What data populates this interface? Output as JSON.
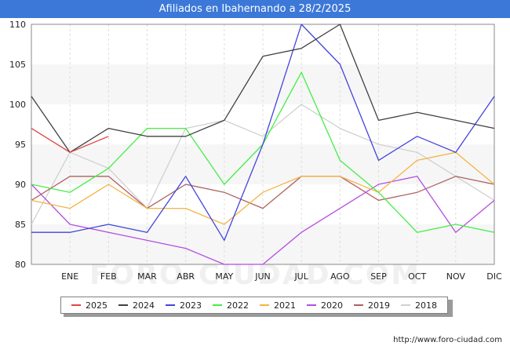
{
  "header": {
    "title": "Afiliados en Ibahernando a 28/2/2025"
  },
  "watermark": "FORO-CIUDAD.COM",
  "footer": {
    "url": "http://www.foro-ciudad.com"
  },
  "chart_data": {
    "type": "line",
    "title": "Afiliados en Ibahernando a 28/2/2025",
    "xlabel": "",
    "ylabel": "",
    "ylim": [
      80,
      110
    ],
    "yticks": [
      80,
      85,
      90,
      95,
      100,
      105,
      110
    ],
    "grid": true,
    "legend_position": "bottom",
    "categories": [
      "",
      "ENE",
      "FEB",
      "MAR",
      "ABR",
      "MAY",
      "JUN",
      "JUL",
      "AGO",
      "SEP",
      "OCT",
      "NOV",
      "DIC"
    ],
    "series": [
      {
        "name": "2018",
        "color": "#d0d0d0",
        "values": [
          85,
          94,
          92,
          87,
          97,
          98,
          96,
          100,
          97,
          95,
          94,
          91,
          88
        ]
      },
      {
        "name": "2019",
        "color": "#b06060",
        "values": [
          88,
          91,
          91,
          87,
          90,
          89,
          87,
          91,
          91,
          88,
          89,
          91,
          90
        ]
      },
      {
        "name": "2020",
        "color": "#b44ee0",
        "values": [
          90,
          85,
          84,
          83,
          82,
          80,
          80,
          84,
          87,
          90,
          91,
          84,
          88
        ]
      },
      {
        "name": "2021",
        "color": "#f5b342",
        "values": [
          88,
          87,
          90,
          87,
          87,
          85,
          89,
          91,
          91,
          89,
          93,
          94,
          90
        ]
      },
      {
        "name": "2022",
        "color": "#44ee44",
        "values": [
          90,
          89,
          92,
          97,
          97,
          90,
          95,
          104,
          93,
          89,
          84,
          85,
          84
        ]
      },
      {
        "name": "2023",
        "color": "#4444dd",
        "values": [
          84,
          84,
          85,
          84,
          91,
          83,
          95,
          110,
          105,
          93,
          96,
          94,
          101
        ]
      },
      {
        "name": "2024",
        "color": "#404040",
        "values": [
          101,
          94,
          97,
          96,
          96,
          98,
          106,
          107,
          110,
          98,
          99,
          98,
          97
        ]
      },
      {
        "name": "2025",
        "color": "#e04444",
        "values": [
          97,
          94,
          96,
          null,
          null,
          null,
          null,
          null,
          null,
          null,
          null,
          null,
          null
        ]
      }
    ],
    "legend": [
      "2025",
      "2024",
      "2023",
      "2022",
      "2021",
      "2020",
      "2019",
      "2018"
    ]
  }
}
